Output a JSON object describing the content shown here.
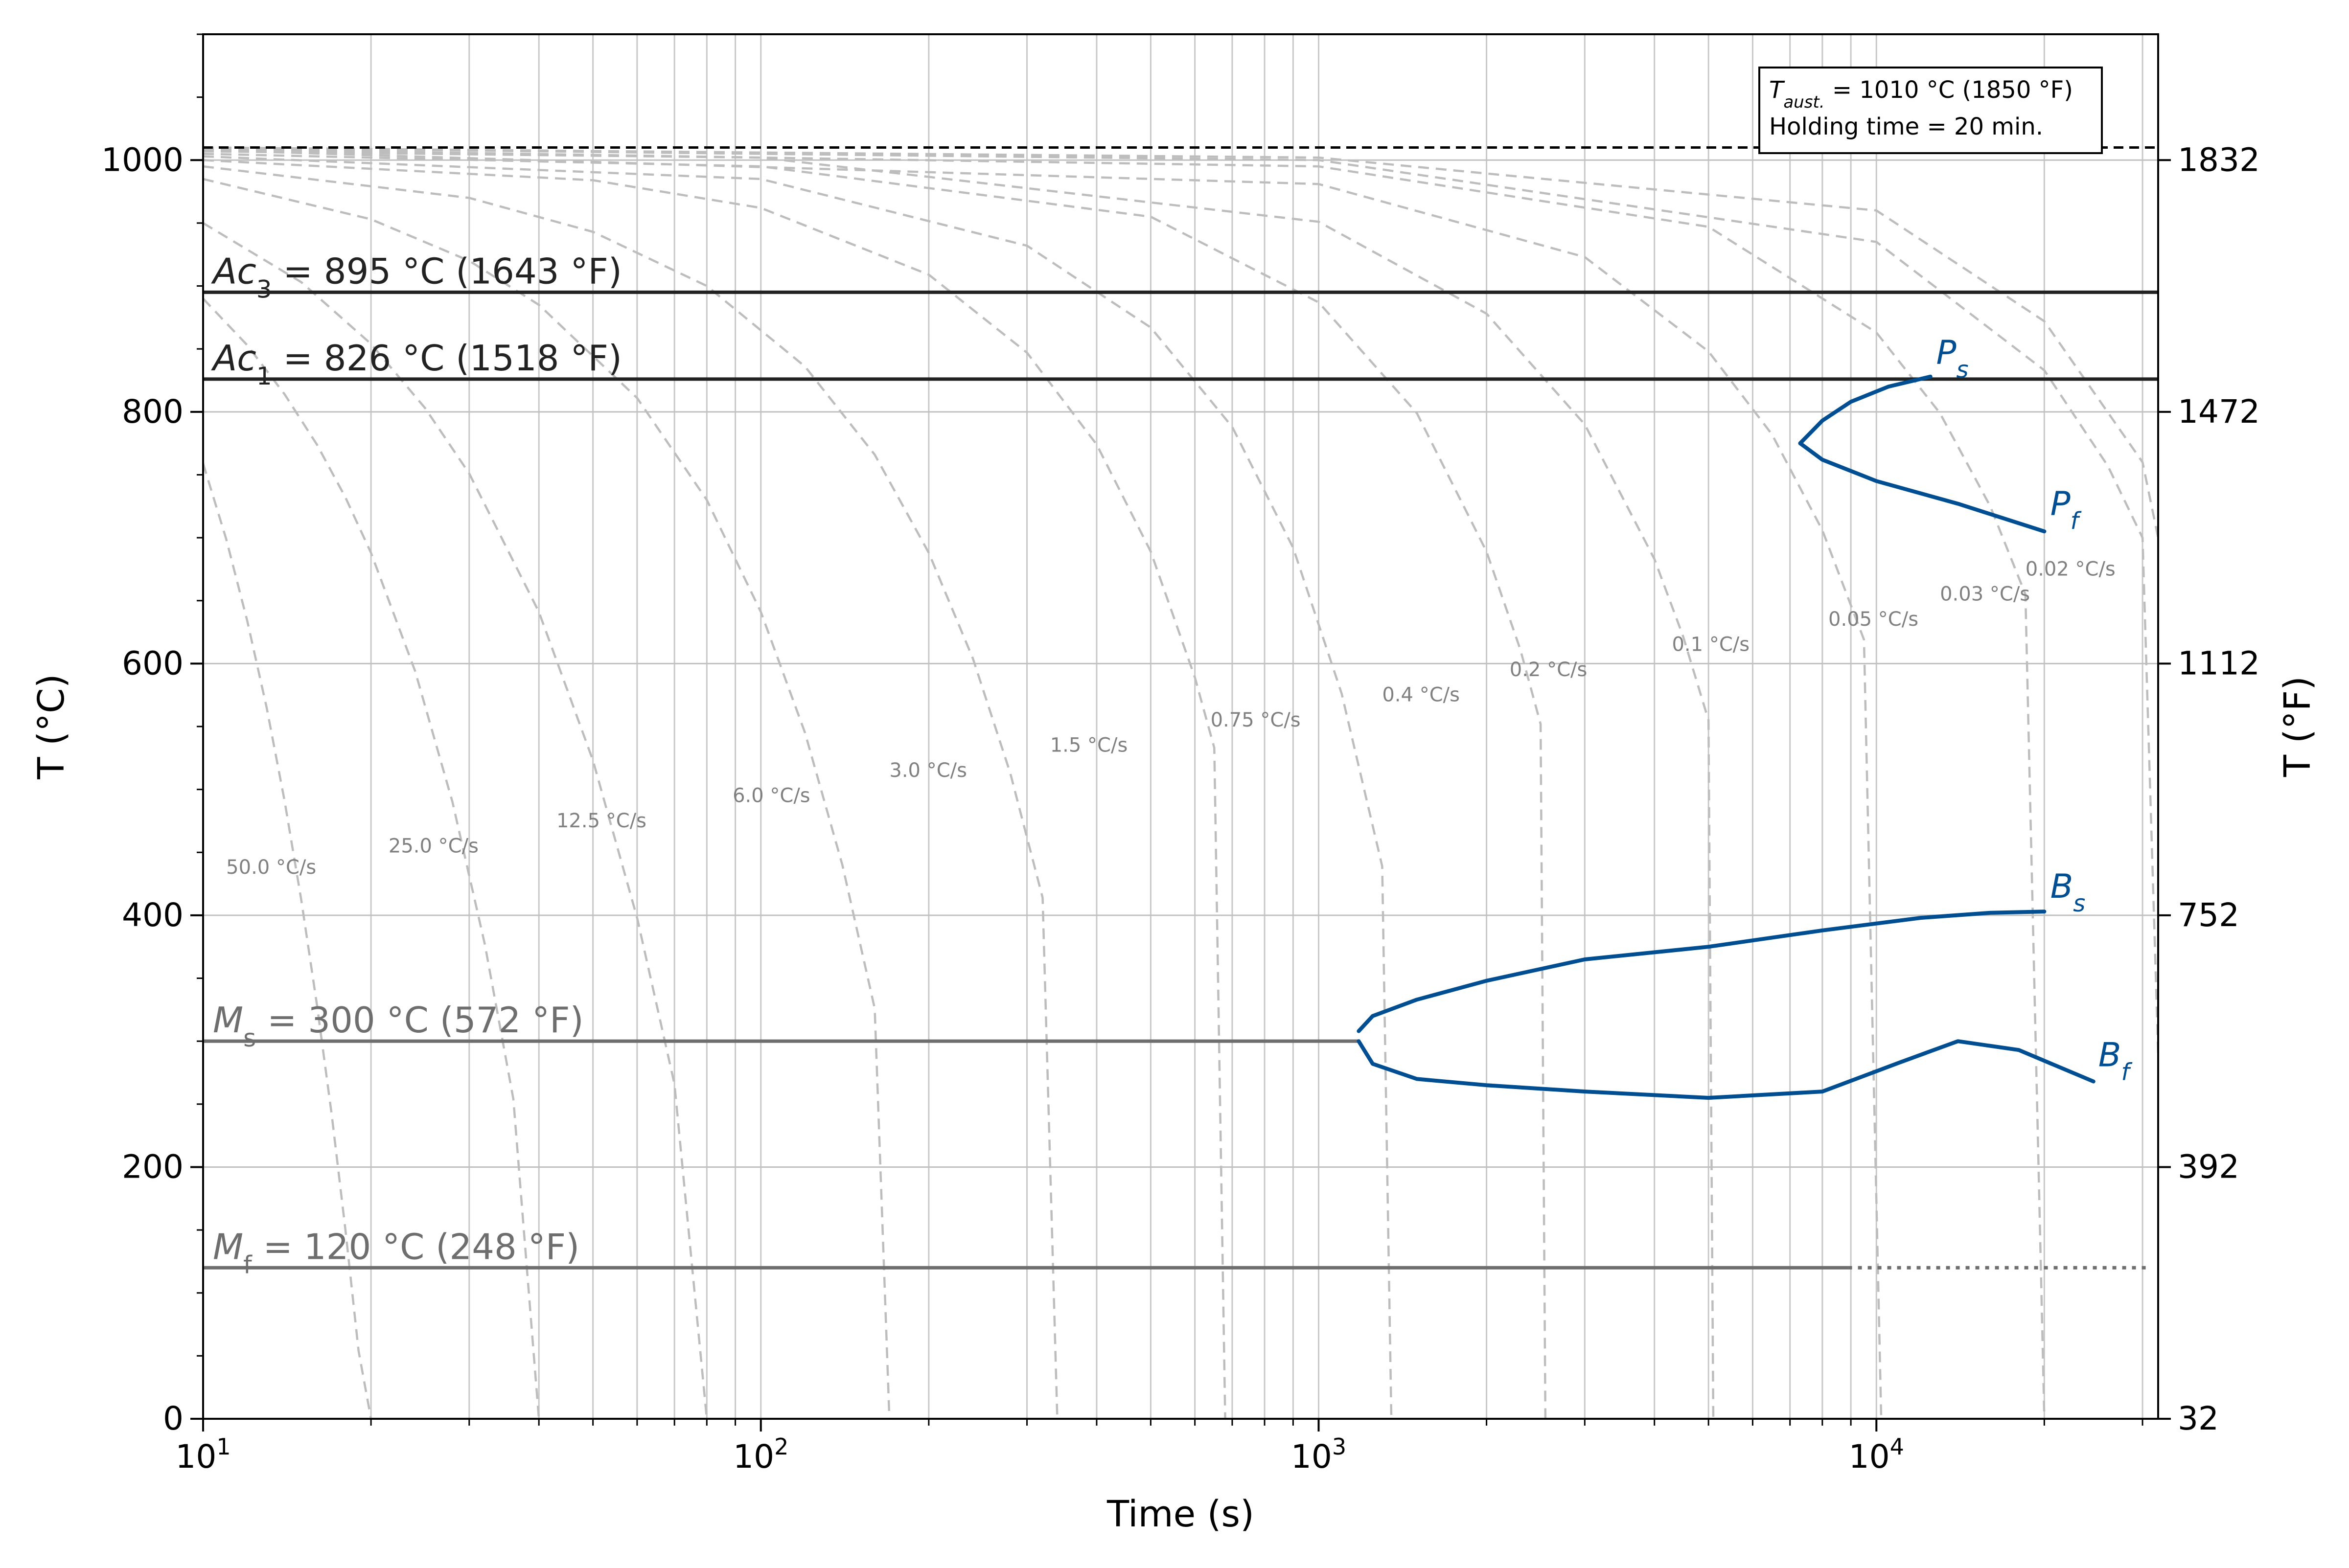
{
  "chart_data": {
    "type": "line",
    "title": "",
    "xlabel": "Time (s)",
    "ylabel": "T (°C)",
    "ylabel_right": "T (°F)",
    "xscale": "log",
    "xlim": [
      10,
      32000
    ],
    "ylim": [
      0,
      1100
    ],
    "grid": true,
    "x_ticks": [
      {
        "value": 10,
        "label": "10",
        "exp": "1"
      },
      {
        "value": 100,
        "label": "10",
        "exp": "2"
      },
      {
        "value": 1000,
        "label": "10",
        "exp": "3"
      },
      {
        "value": 10000,
        "label": "10",
        "exp": "4"
      }
    ],
    "y_ticks": [
      0,
      200,
      400,
      600,
      800,
      1000
    ],
    "y_ticks_labels": [
      "0",
      "200",
      "400",
      "600",
      "800",
      "1000"
    ],
    "y2_ticks": [
      0,
      200,
      400,
      600,
      800,
      1000
    ],
    "y2_ticks_labels": [
      "32",
      "392",
      "752",
      "1112",
      "1472",
      "1832"
    ],
    "info_box": {
      "line1_main": "T",
      "line1_sub": "aust.",
      "line1_rest": " = 1010 °C (1850 °F)",
      "line2": "Holding time = 20 min."
    },
    "austenitizing_line": {
      "y": 1010
    },
    "critical_lines": [
      {
        "name": "Ac3",
        "y": 895,
        "main": "Ac",
        "sub": "3",
        "rest": " = 895 °C (1643 °F)",
        "color": "#222222"
      },
      {
        "name": "Ac1",
        "y": 826,
        "main": "Ac",
        "sub": "1",
        "rest": " = 826 °C (1518 °F)",
        "color": "#222222"
      },
      {
        "name": "Ms",
        "y": 300,
        "x_end": 1180,
        "main": "M",
        "sub": "s",
        "rest": " = 300 °C (572 °F)",
        "color": "#6e6e6e"
      },
      {
        "name": "Mf",
        "y": 120,
        "x_end": 8900,
        "x_dotted_end": 31000,
        "main": "M",
        "sub": "f",
        "rest": " = 120 °C (248 °F)",
        "color": "#6e6e6e"
      }
    ],
    "cooling_curves": [
      {
        "rate_label": "50.0 °C/s",
        "x": [
          10,
          11,
          12,
          13,
          14,
          15,
          16,
          17,
          18,
          19,
          20
        ],
        "y": [
          759,
          699,
          634,
          565,
          491,
          412,
          329,
          242,
          150,
          54,
          0
        ],
        "label_x": 11,
        "label_y": 433
      },
      {
        "rate_label": "25.0 °C/s",
        "x": [
          10,
          12,
          14,
          16,
          18,
          20,
          24,
          28,
          32,
          36,
          40
        ],
        "y": [
          890,
          853,
          814,
          774,
          732,
          688,
          594,
          490,
          377,
          254,
          0
        ],
        "label_x": 21.5,
        "label_y": 450
      },
      {
        "rate_label": "12.5 °C/s",
        "x": [
          10,
          15,
          20,
          25,
          30,
          40,
          50,
          60,
          70,
          80
        ],
        "y": [
          950,
          903,
          854,
          803,
          751,
          641,
          523,
          398,
          266,
          0
        ],
        "label_x": 43,
        "label_y": 470
      },
      {
        "rate_label": "6.0 °C/s",
        "x": [
          10,
          20,
          30,
          40,
          60,
          80,
          100,
          120,
          140,
          160,
          170
        ],
        "y": [
          985,
          953,
          920,
          885,
          811,
          730,
          641,
          545,
          440,
          326,
          0
        ],
        "label_x": 89,
        "label_y": 490
      },
      {
        "rate_label": "3.0 °C/s",
        "x": [
          10,
          30,
          50,
          80,
          120,
          160,
          200,
          240,
          280,
          320,
          340
        ],
        "y": [
          995,
          970,
          943,
          900,
          836,
          766,
          688,
          604,
          513,
          414,
          0
        ],
        "label_x": 170,
        "label_y": 510
      },
      {
        "rate_label": "1.5 °C/s",
        "x": [
          10,
          50,
          100,
          200,
          300,
          400,
          500,
          600,
          650,
          680
        ],
        "y": [
          1000,
          984,
          962,
          909,
          847,
          774,
          689,
          589,
          533,
          0
        ],
        "label_x": 330,
        "label_y": 530
      },
      {
        "rate_label": "0.75 °C/s",
        "x": [
          10,
          100,
          300,
          500,
          700,
          900,
          1100,
          1300,
          1350
        ],
        "y": [
          1003,
          985,
          932,
          867,
          788,
          692,
          576,
          439,
          0
        ],
        "label_x": 640,
        "label_y": 550
      },
      {
        "rate_label": "0.4 °C/s",
        "x": [
          10,
          100,
          500,
          1000,
          1500,
          2000,
          2300,
          2500,
          2550
        ],
        "y": [
          1005,
          995,
          955,
          887,
          799,
          689,
          611,
          552,
          0
        ],
        "label_x": 1300,
        "label_y": 570
      },
      {
        "rate_label": "0.2 °C/s",
        "x": [
          10,
          100,
          1000,
          2000,
          3000,
          4000,
          4500,
          5000,
          5100
        ],
        "y": [
          1007,
          1002,
          951,
          878,
          790,
          683,
          622,
          555,
          0
        ],
        "label_x": 2200,
        "label_y": 590
      },
      {
        "rate_label": "0.1 °C/s",
        "x": [
          10,
          1000,
          3000,
          5000,
          6500,
          8000,
          9500,
          10200
        ],
        "y": [
          1008,
          981,
          923,
          848,
          782,
          706,
          619,
          0
        ],
        "label_x": 4300,
        "label_y": 610
      },
      {
        "rate_label": "0.05 °C/s",
        "x": [
          10,
          1000,
          5000,
          10000,
          13000,
          16000,
          18500,
          20000
        ],
        "y": [
          1009,
          995,
          947,
          863,
          799,
          725,
          655,
          0
        ],
        "label_x": 8200,
        "label_y": 630
      },
      {
        "rate_label": "0.03 °C/s",
        "x": [
          10,
          1000,
          10000,
          20000,
          26000,
          30000,
          32000
        ],
        "y": [
          1010,
          1000,
          935,
          833,
          757,
          700,
          290
        ],
        "label_x": 13000,
        "label_y": 650
      },
      {
        "rate_label": "0.02 °C/s",
        "x": [
          10,
          1000,
          10000,
          20000,
          30000,
          32000
        ],
        "y": [
          1010,
          1002,
          960,
          872,
          760,
          700
        ],
        "label_x": 18500,
        "label_y": 670
      }
    ],
    "transformation_curves": [
      {
        "name": "Ps",
        "main": "P",
        "sub": "s",
        "x": [
          7300,
          8000,
          9000,
          10500,
          12500
        ],
        "y": [
          775,
          793,
          808,
          820,
          828
        ],
        "label_x": 12800,
        "label_y": 838
      },
      {
        "name": "Pf",
        "main": "P",
        "sub": "f",
        "x": [
          7300,
          8000,
          10000,
          14000,
          20000
        ],
        "y": [
          775,
          762,
          745,
          727,
          705
        ],
        "label_x": 20500,
        "label_y": 718
      },
      {
        "name": "Bs",
        "main": "B",
        "sub": "s",
        "x": [
          1180,
          1250,
          1500,
          2000,
          3000,
          5000,
          8000,
          12000,
          16000,
          20000
        ],
        "y": [
          308,
          320,
          333,
          348,
          365,
          375,
          388,
          398,
          402,
          403
        ],
        "label_x": 20500,
        "label_y": 414
      },
      {
        "name": "Bf",
        "main": "B",
        "sub": "f",
        "x": [
          1180,
          1250,
          1500,
          2000,
          3000,
          5000,
          8000,
          11000,
          14000,
          18000,
          24500
        ],
        "y": [
          300,
          282,
          270,
          265,
          260,
          255,
          260,
          283,
          300,
          293,
          268
        ],
        "label_x": 25000,
        "label_y": 280
      }
    ]
  }
}
